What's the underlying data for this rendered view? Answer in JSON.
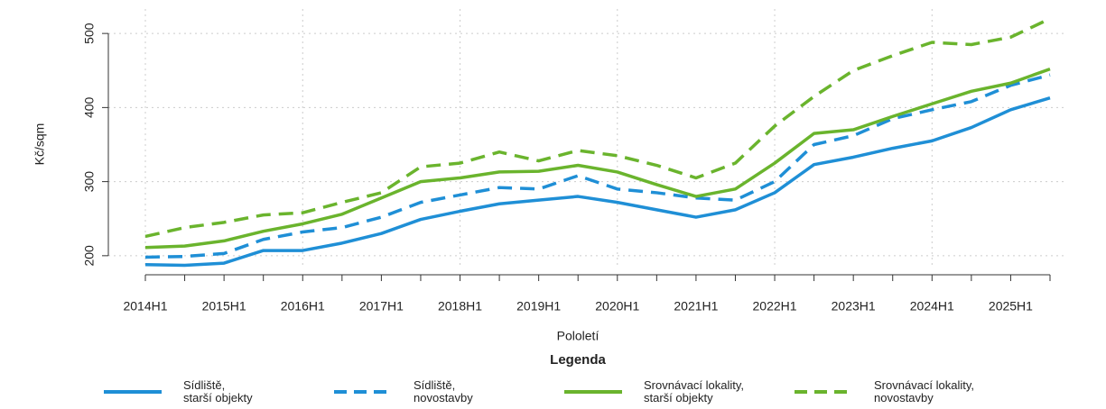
{
  "chart_data": {
    "type": "line",
    "x_label": "Pololetí",
    "y_label": "Kč/sqm",
    "legend_title": "Legenda",
    "categories": [
      "2014H1",
      null,
      "2015H1",
      null,
      "2016H1",
      null,
      "2017H1",
      null,
      "2018H1",
      null,
      "2019H1",
      null,
      "2020H1",
      null,
      "2021H1",
      null,
      "2022H1",
      null,
      "2023H1",
      null,
      "2024H1",
      null,
      "2025H1",
      null
    ],
    "series": [
      {
        "name": "Sídliště,\nstarší objekty",
        "color": "#1f8fd6",
        "dashed": false,
        "values": [
          188,
          187,
          190,
          207,
          207,
          217,
          230,
          249,
          260,
          270,
          275,
          280,
          272,
          262,
          252,
          262,
          285,
          323,
          333,
          345,
          355,
          373,
          397,
          413
        ]
      },
      {
        "name": "Sídliště,\nnovostavby",
        "color": "#1f8fd6",
        "dashed": true,
        "values": [
          198,
          199,
          203,
          222,
          232,
          238,
          252,
          272,
          282,
          292,
          290,
          308,
          290,
          285,
          278,
          275,
          300,
          350,
          362,
          385,
          397,
          408,
          430,
          444
        ]
      },
      {
        "name": "Srovnávací lokality,\nstarší objekty",
        "color": "#6ab42d",
        "dashed": false,
        "values": [
          211,
          213,
          220,
          233,
          243,
          256,
          278,
          300,
          305,
          313,
          314,
          322,
          313,
          296,
          280,
          290,
          325,
          365,
          370,
          388,
          405,
          422,
          433,
          452
        ]
      },
      {
        "name": "Srovnávací lokality,\nnovostavby",
        "color": "#6ab42d",
        "dashed": true,
        "values": [
          226,
          238,
          245,
          255,
          258,
          272,
          285,
          320,
          325,
          340,
          328,
          342,
          335,
          322,
          305,
          325,
          375,
          415,
          450,
          470,
          488,
          485,
          495,
          520
        ]
      }
    ],
    "ylim": [
      184,
      533
    ],
    "yticks": [
      200,
      300,
      400,
      500
    ],
    "grid": true
  }
}
